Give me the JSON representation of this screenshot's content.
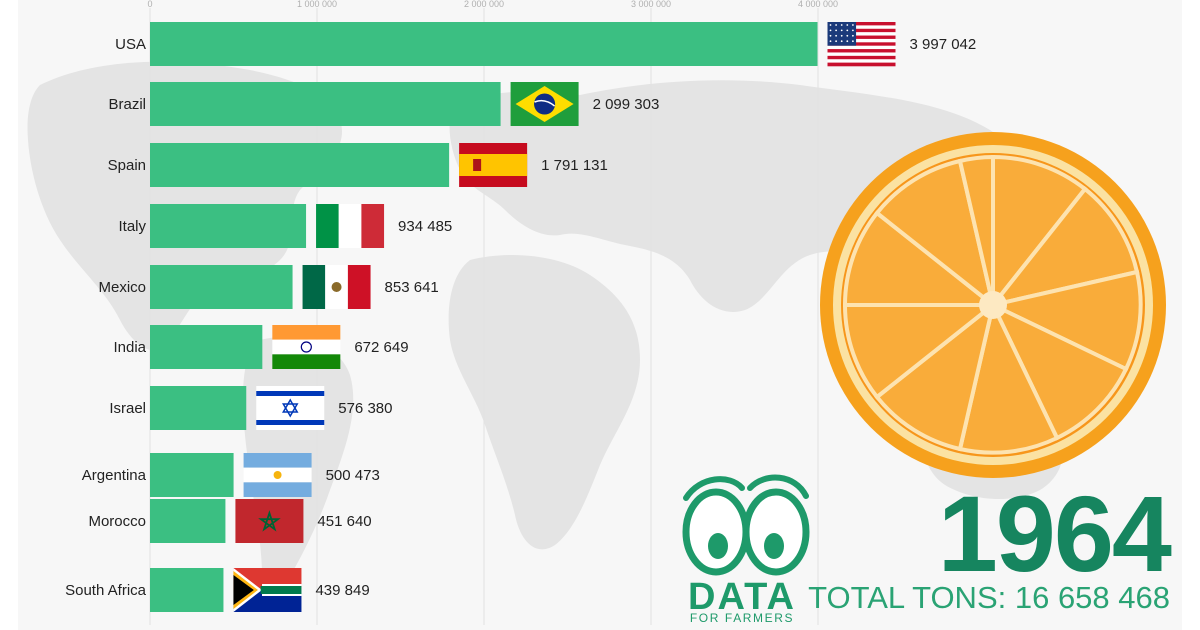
{
  "chart_data": {
    "type": "bar",
    "orientation": "horizontal",
    "categories": [
      "USA",
      "Brazil",
      "Spain",
      "Italy",
      "Mexico",
      "India",
      "Israel",
      "Argentina",
      "Morocco",
      "South Africa"
    ],
    "values": [
      3997042,
      2099303,
      1791131,
      934485,
      853641,
      672649,
      576380,
      500473,
      451640,
      439849
    ],
    "value_labels": [
      "3 997 042",
      "2 099 303",
      "1 791 131",
      "934 485",
      "853 641",
      "672 649",
      "576 380",
      "500 473",
      "451 640",
      "439 849"
    ],
    "flags": [
      "usa-flag-icon",
      "brazil-flag-icon",
      "spain-flag-icon",
      "italy-flag-icon",
      "mexico-flag-icon",
      "india-flag-icon",
      "israel-flag-icon",
      "argentina-flag-icon",
      "morocco-flag-icon",
      "south-africa-flag-icon"
    ],
    "xlim": [
      0,
      4000000
    ],
    "ticks": [
      0,
      1000000,
      2000000,
      3000000,
      4000000
    ],
    "tick_labels": [
      "0",
      "1 000 000",
      "2 000 000",
      "3 000 000",
      "4 000 000"
    ],
    "bar_color": "#3bbf82",
    "grid": true
  },
  "year": "1964",
  "total": "TOTAL TONS: 16 658 468",
  "logo": {
    "word": "DATA",
    "sub": "FOR FARMERS",
    "icon": "eyes-logo-icon"
  },
  "decor": {
    "orange": "orange-slice-icon",
    "map": "world-map-icon"
  }
}
